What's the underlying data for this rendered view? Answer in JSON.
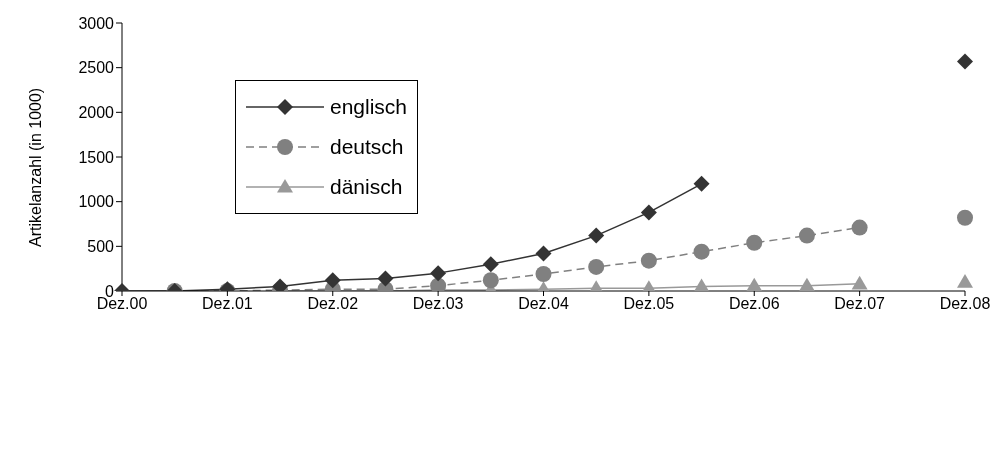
{
  "chart_data": {
    "type": "line",
    "ylabel": "Artikelanzahl (in 1000)",
    "categories": [
      "Dez.00",
      null,
      "Dez.01",
      null,
      "Dez.02",
      null,
      "Dez.03",
      null,
      "Dez.04",
      null,
      "Dez.05",
      null,
      "Dez.06",
      null,
      "Dez.07",
      null,
      "Dez.08"
    ],
    "series": [
      {
        "name": "englisch",
        "color": "#333333",
        "marker": "diamond",
        "line_style": "solid",
        "values": [
          0,
          0,
          20,
          50,
          120,
          140,
          200,
          300,
          420,
          620,
          880,
          1200,
          null,
          null,
          null,
          null,
          2570
        ]
      },
      {
        "name": "deutsch",
        "color": "#808080",
        "marker": "circle",
        "line_style": "dashed",
        "values": [
          null,
          0,
          0,
          10,
          20,
          20,
          60,
          120,
          190,
          270,
          340,
          440,
          540,
          620,
          710,
          null,
          820
        ]
      },
      {
        "name": "dänisch",
        "color": "#999999",
        "marker": "triangle",
        "line_style": "solid",
        "values": [
          null,
          null,
          null,
          0,
          0,
          0,
          10,
          10,
          20,
          30,
          30,
          50,
          60,
          60,
          80,
          null,
          100
        ]
      }
    ],
    "ylim": [
      0,
      3000
    ],
    "yticks": [
      0,
      500,
      1000,
      1500,
      2000,
      2500,
      3000
    ],
    "legend": "top left"
  }
}
